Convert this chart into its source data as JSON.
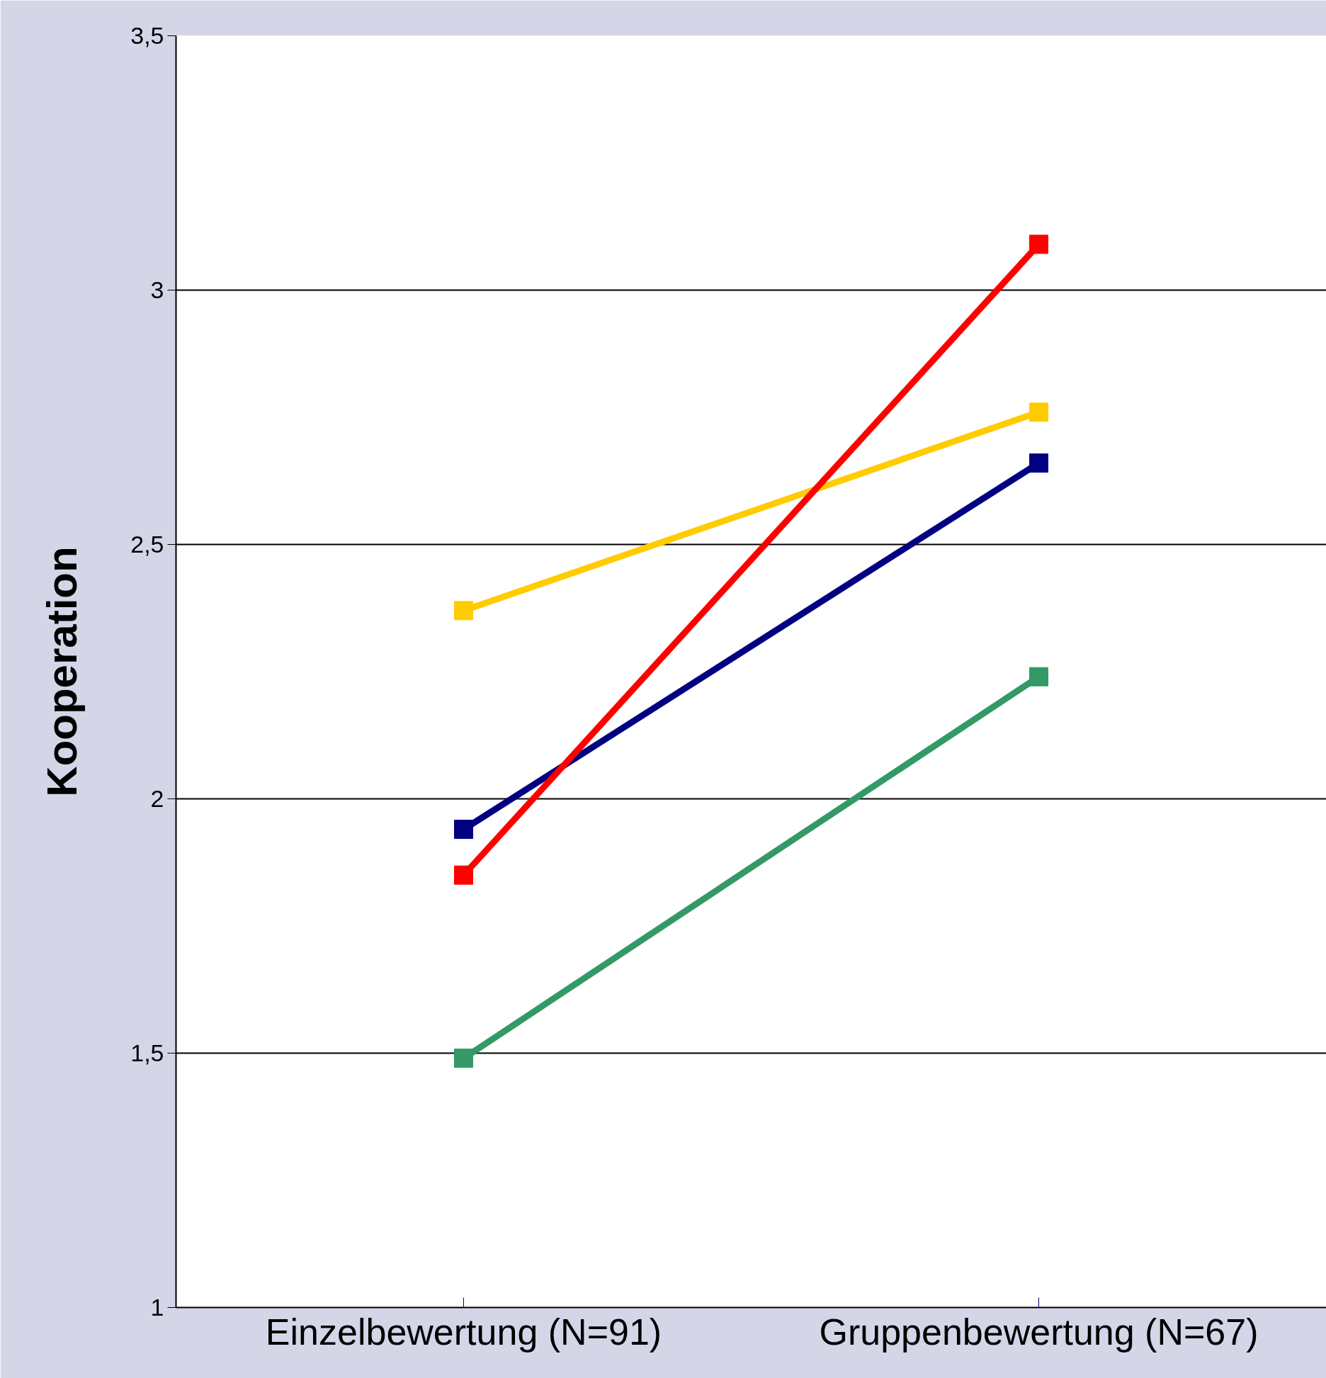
{
  "chart_data": {
    "type": "line",
    "ylabel": "Kooperation",
    "categories": [
      "Einzelbewertung (N=91)",
      "Gruppenbewertung (N=67)"
    ],
    "series": [
      {
        "color": "#ffcc00",
        "values": [
          2.37,
          2.76
        ]
      },
      {
        "color": "#000080",
        "values": [
          1.94,
          2.66
        ]
      },
      {
        "color": "#ff0000",
        "values": [
          1.85,
          3.09
        ]
      },
      {
        "color": "#339966",
        "values": [
          1.49,
          2.24
        ]
      }
    ],
    "ylim": [
      1,
      3.5
    ],
    "yticks": [
      1,
      {
        "value": 1.5,
        "label": "1,5"
      },
      2,
      {
        "value": 2.5,
        "label": "2,5"
      },
      3,
      {
        "value": 3.5,
        "label": "3,5"
      }
    ],
    "grid": "y",
    "marker": "square",
    "line_style": "solid"
  }
}
